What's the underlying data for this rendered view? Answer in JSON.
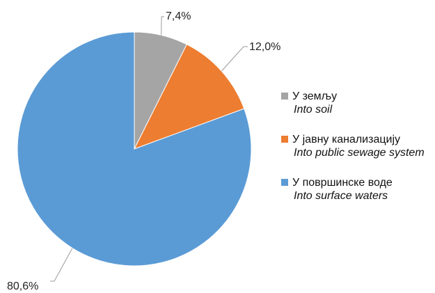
{
  "chart_data": {
    "type": "pie",
    "title": "",
    "categories": [
      "У земљу",
      "У јавну канализацију",
      "У површинске воде"
    ],
    "categories_en": [
      "Into soil",
      "Into public sewage system",
      "Into surface waters"
    ],
    "values": [
      7.4,
      12.0,
      80.6
    ],
    "value_labels": [
      "7,4%",
      "12,0%",
      "80,6%"
    ],
    "colors": [
      "#a5a5a5",
      "#ed7d31",
      "#5b9bd5"
    ],
    "start_angle_deg": 0,
    "direction": "clockwise",
    "legend_position": "right"
  },
  "legend": {
    "items": [
      {
        "label": "У земљу",
        "label_en": "Into soil",
        "color": "#a5a5a5"
      },
      {
        "label": "У јавну канализацију",
        "label_en": "Into public sewage system",
        "color": "#ed7d31"
      },
      {
        "label": "У површинске воде",
        "label_en": "Into surface waters",
        "color": "#5b9bd5"
      }
    ]
  }
}
